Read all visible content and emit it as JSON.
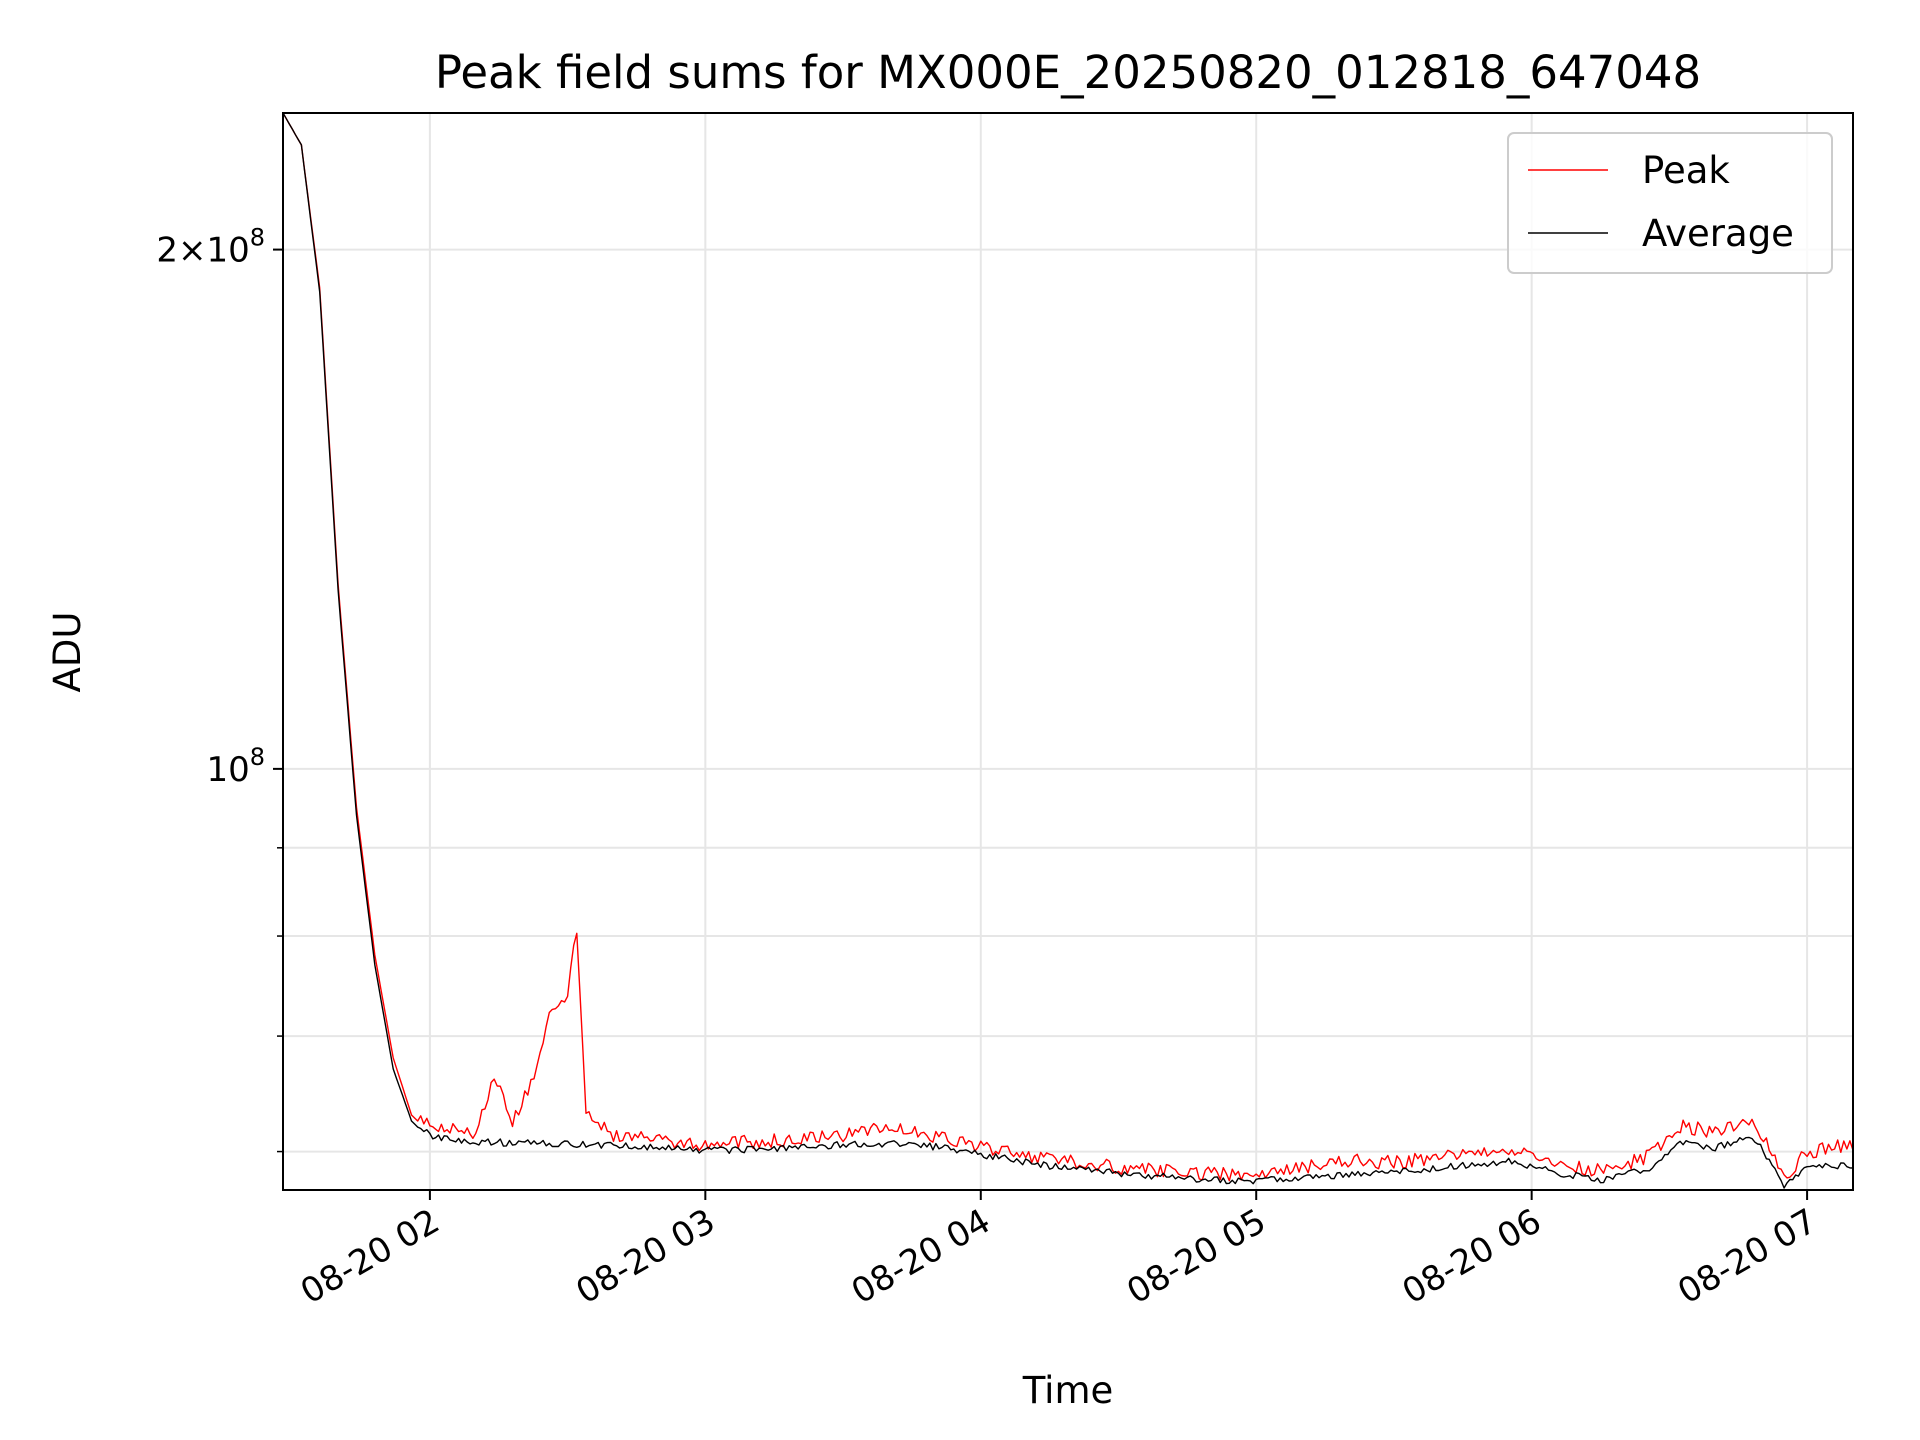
{
  "chart_data": {
    "type": "line",
    "title": "Peak field sums for MX000E_20250820_012818_647048",
    "xlabel": "Time",
    "ylabel": "ADU",
    "y_scale": "log",
    "xlim": [
      "2025-08-20 01:28",
      "2025-08-20 07:10"
    ],
    "ylim": [
      57000000,
      240000000
    ],
    "x_ticks": [
      {
        "value": "2025-08-20 02:00",
        "label": "08-20 02"
      },
      {
        "value": "2025-08-20 03:00",
        "label": "08-20 03"
      },
      {
        "value": "2025-08-20 04:00",
        "label": "08-20 04"
      },
      {
        "value": "2025-08-20 05:00",
        "label": "08-20 05"
      },
      {
        "value": "2025-08-20 06:00",
        "label": "08-20 06"
      },
      {
        "value": "2025-08-20 07:00",
        "label": "08-20 07"
      }
    ],
    "y_major_ticks": [
      {
        "value": 100000000,
        "label": "10^8"
      },
      {
        "value": 200000000,
        "label": "2×10^8"
      }
    ],
    "y_minor_ticks": [
      60000000,
      70000000,
      80000000,
      90000000
    ],
    "grid": true,
    "legend_position": "top-right",
    "series": [
      {
        "name": "Peak",
        "color": "#ff0000",
        "x": [
          "2025-08-20 01:28",
          "2025-08-20 01:32",
          "2025-08-20 01:36",
          "2025-08-20 01:40",
          "2025-08-20 01:44",
          "2025-08-20 01:48",
          "2025-08-20 01:52",
          "2025-08-20 01:56",
          "2025-08-20 02:00",
          "2025-08-20 02:05",
          "2025-08-20 02:10",
          "2025-08-20 02:14",
          "2025-08-20 02:18",
          "2025-08-20 02:22",
          "2025-08-20 02:26",
          "2025-08-20 02:30",
          "2025-08-20 02:32",
          "2025-08-20 02:34",
          "2025-08-20 02:40",
          "2025-08-20 02:50",
          "2025-08-20 03:00",
          "2025-08-20 03:15",
          "2025-08-20 03:30",
          "2025-08-20 03:40",
          "2025-08-20 03:45",
          "2025-08-20 04:00",
          "2025-08-20 04:15",
          "2025-08-20 04:30",
          "2025-08-20 04:45",
          "2025-08-20 05:00",
          "2025-08-20 05:10",
          "2025-08-20 05:20",
          "2025-08-20 05:30",
          "2025-08-20 05:45",
          "2025-08-20 05:55",
          "2025-08-20 06:05",
          "2025-08-20 06:15",
          "2025-08-20 06:25",
          "2025-08-20 06:30",
          "2025-08-20 06:33",
          "2025-08-20 06:40",
          "2025-08-20 06:48",
          "2025-08-20 06:53",
          "2025-08-20 06:55",
          "2025-08-20 07:00",
          "2025-08-20 07:04",
          "2025-08-20 07:10"
        ],
        "y": [
          240000000,
          230000000,
          190000000,
          128000000,
          95000000,
          78000000,
          68000000,
          63000000,
          61500000,
          61200000,
          61000000,
          66000000,
          62000000,
          65000000,
          71000000,
          73000000,
          80000000,
          63000000,
          60800000,
          60400000,
          60000000,
          60300000,
          60800000,
          61500000,
          61000000,
          59800000,
          58800000,
          58200000,
          57800000,
          57600000,
          58200000,
          58700000,
          58600000,
          59200000,
          59600000,
          58600000,
          57900000,
          59000000,
          60500000,
          61500000,
          61000000,
          62000000,
          59000000,
          57500000,
          59400000,
          59600000,
          60100000
        ]
      },
      {
        "name": "Average",
        "color": "#000000",
        "x": [
          "2025-08-20 01:28",
          "2025-08-20 01:32",
          "2025-08-20 01:36",
          "2025-08-20 01:40",
          "2025-08-20 01:44",
          "2025-08-20 01:48",
          "2025-08-20 01:52",
          "2025-08-20 01:56",
          "2025-08-20 02:00",
          "2025-08-20 02:05",
          "2025-08-20 02:10",
          "2025-08-20 02:20",
          "2025-08-20 02:30",
          "2025-08-20 02:40",
          "2025-08-20 02:50",
          "2025-08-20 03:00",
          "2025-08-20 03:15",
          "2025-08-20 03:30",
          "2025-08-20 03:45",
          "2025-08-20 04:00",
          "2025-08-20 04:15",
          "2025-08-20 04:30",
          "2025-08-20 04:45",
          "2025-08-20 05:00",
          "2025-08-20 05:15",
          "2025-08-20 05:30",
          "2025-08-20 05:45",
          "2025-08-20 05:55",
          "2025-08-20 06:05",
          "2025-08-20 06:15",
          "2025-08-20 06:25",
          "2025-08-20 06:33",
          "2025-08-20 06:40",
          "2025-08-20 06:48",
          "2025-08-20 06:53",
          "2025-08-20 06:55",
          "2025-08-20 07:00",
          "2025-08-20 07:10"
        ],
        "y": [
          240000000,
          230000000,
          189000000,
          127000000,
          94000000,
          77000000,
          67000000,
          62500000,
          61000000,
          60700000,
          60500000,
          60400000,
          60300000,
          60200000,
          60100000,
          59800000,
          59900000,
          60300000,
          60400000,
          59500000,
          58600000,
          58000000,
          57600000,
          57400000,
          57800000,
          58100000,
          58600000,
          59000000,
          58100000,
          57500000,
          58300000,
          60500000,
          60000000,
          61000000,
          58500000,
          57000000,
          58400000,
          58700000
        ]
      }
    ]
  }
}
